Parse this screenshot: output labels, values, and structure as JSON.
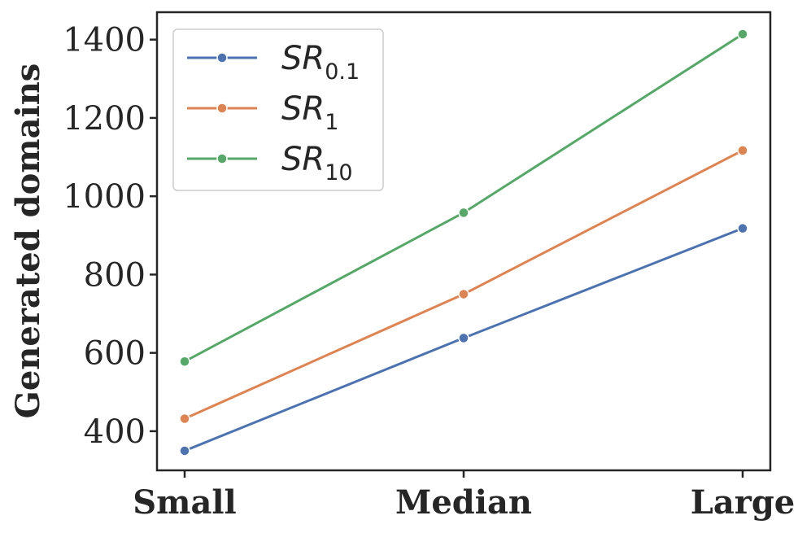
{
  "chart_data": {
    "type": "line",
    "title": "",
    "xlabel": "",
    "ylabel": "Generated domains",
    "categories": [
      "Small",
      "Median",
      "Large"
    ],
    "ylim": [
      300,
      1470
    ],
    "yticks": [
      "400",
      "600",
      "800",
      "1000",
      "1200",
      "1400"
    ],
    "grid": false,
    "legend_position": "top-left",
    "series": [
      {
        "name": "SR0.1",
        "label_base": "SR",
        "label_sub": "0.1",
        "color": "#4c72b0",
        "values": [
          350,
          638,
          918
        ]
      },
      {
        "name": "SR1",
        "label_base": "SR",
        "label_sub": "1",
        "color": "#dd8452",
        "values": [
          432,
          750,
          1117
        ]
      },
      {
        "name": "SR10",
        "label_base": "SR",
        "label_sub": "10",
        "color": "#55a868",
        "values": [
          578,
          958,
          1414
        ]
      }
    ]
  }
}
